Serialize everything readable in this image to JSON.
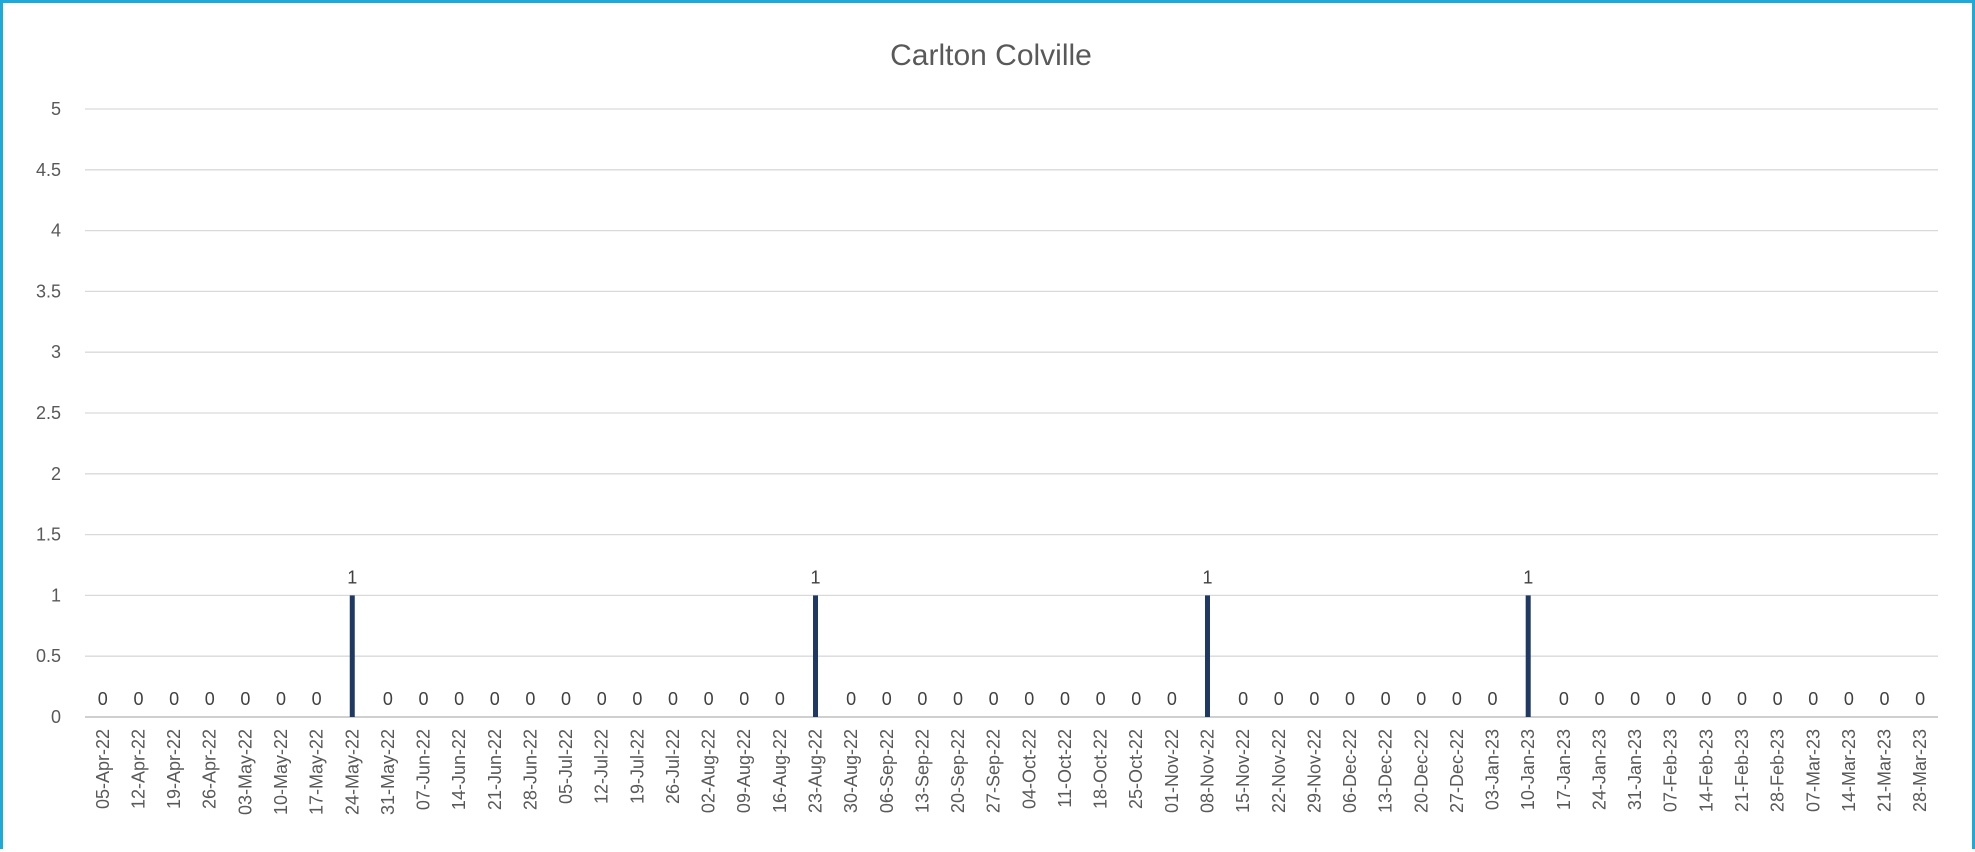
{
  "chart_data": {
    "type": "bar",
    "title": "Carlton Colville",
    "xlabel": "",
    "ylabel": "",
    "ylim": [
      0,
      5
    ],
    "yticks": [
      "0",
      "0.5",
      "1",
      "1.5",
      "2",
      "2.5",
      "3",
      "3.5",
      "4",
      "4.5",
      "5"
    ],
    "grid": true,
    "legend": "none",
    "bar_color": "#1f3864",
    "frame_color": "#1fa9d9",
    "categories": [
      "05-Apr-22",
      "12-Apr-22",
      "19-Apr-22",
      "26-Apr-22",
      "03-May-22",
      "10-May-22",
      "17-May-22",
      "24-May-22",
      "31-May-22",
      "07-Jun-22",
      "14-Jun-22",
      "21-Jun-22",
      "28-Jun-22",
      "05-Jul-22",
      "12-Jul-22",
      "19-Jul-22",
      "26-Jul-22",
      "02-Aug-22",
      "09-Aug-22",
      "16-Aug-22",
      "23-Aug-22",
      "30-Aug-22",
      "06-Sep-22",
      "13-Sep-22",
      "20-Sep-22",
      "27-Sep-22",
      "04-Oct-22",
      "11-Oct-22",
      "18-Oct-22",
      "25-Oct-22",
      "01-Nov-22",
      "08-Nov-22",
      "15-Nov-22",
      "22-Nov-22",
      "29-Nov-22",
      "06-Dec-22",
      "13-Dec-22",
      "20-Dec-22",
      "27-Dec-22",
      "03-Jan-23",
      "10-Jan-23",
      "17-Jan-23",
      "24-Jan-23",
      "31-Jan-23",
      "07-Feb-23",
      "14-Feb-23",
      "21-Feb-23",
      "28-Feb-23",
      "07-Mar-23",
      "14-Mar-23",
      "21-Mar-23",
      "28-Mar-23"
    ],
    "values": [
      0,
      0,
      0,
      0,
      0,
      0,
      0,
      1,
      0,
      0,
      0,
      0,
      0,
      0,
      0,
      0,
      0,
      0,
      0,
      0,
      1,
      0,
      0,
      0,
      0,
      0,
      0,
      0,
      0,
      0,
      0,
      1,
      0,
      0,
      0,
      0,
      0,
      0,
      0,
      0,
      1,
      0,
      0,
      0,
      0,
      0,
      0,
      0,
      0,
      0,
      0,
      0
    ],
    "data_labels": [
      "0",
      "0",
      "0",
      "0",
      "0",
      "0",
      "0",
      "1",
      "0",
      "0",
      "0",
      "0",
      "0",
      "0",
      "0",
      "0",
      "0",
      "0",
      "0",
      "0",
      "1",
      "0",
      "0",
      "0",
      "0",
      "0",
      "0",
      "0",
      "0",
      "0",
      "0",
      "1",
      "0",
      "0",
      "0",
      "0",
      "0",
      "0",
      "0",
      "0",
      "1",
      "0",
      "0",
      "0",
      "0",
      "0",
      "0",
      "0",
      "0",
      "0",
      "0",
      "0"
    ]
  }
}
